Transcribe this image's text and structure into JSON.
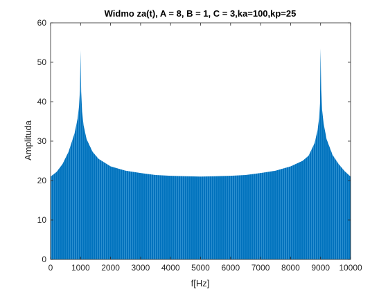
{
  "chart_data": {
    "type": "bar",
    "title": "Widmo za(t), A = 8, B = 1, C = 3,ka=100,kp=25",
    "xlabel": "f[Hz]",
    "ylabel": "Amplituda",
    "xlim": [
      0,
      10000
    ],
    "ylim": [
      0,
      60
    ],
    "xticks": [
      0,
      1000,
      2000,
      3000,
      4000,
      5000,
      6000,
      7000,
      8000,
      9000,
      10000
    ],
    "yticks": [
      0,
      10,
      20,
      30,
      40,
      50,
      60
    ],
    "grid": false,
    "legend": "none",
    "bar_color": "#0072BD",
    "bar_edge_color": "#2b8fd0",
    "envelope": {
      "x": [
        0,
        200,
        400,
        600,
        800,
        900,
        950,
        980,
        1000,
        1020,
        1050,
        1100,
        1200,
        1400,
        1600,
        2000,
        2500,
        3000,
        3500,
        4000,
        4500,
        5000,
        5500,
        6000,
        6500,
        7000,
        7500,
        8000,
        8400,
        8600,
        8800,
        8900,
        8950,
        8980,
        9000,
        9020,
        9050,
        9100,
        9200,
        9400,
        9600,
        9800,
        10000
      ],
      "y": [
        21.0,
        22.2,
        24.2,
        27.3,
        32.0,
        35.7,
        39.0,
        43.0,
        53.0,
        42.5,
        37.5,
        34.0,
        30.5,
        27.3,
        25.5,
        23.6,
        22.5,
        21.9,
        21.4,
        21.2,
        21.1,
        21.0,
        21.1,
        21.2,
        21.4,
        21.9,
        22.5,
        23.6,
        25.0,
        26.3,
        29.5,
        32.8,
        35.8,
        39.5,
        53.5,
        43.0,
        38.0,
        34.5,
        30.5,
        26.5,
        24.2,
        22.4,
        21.0
      ]
    }
  }
}
